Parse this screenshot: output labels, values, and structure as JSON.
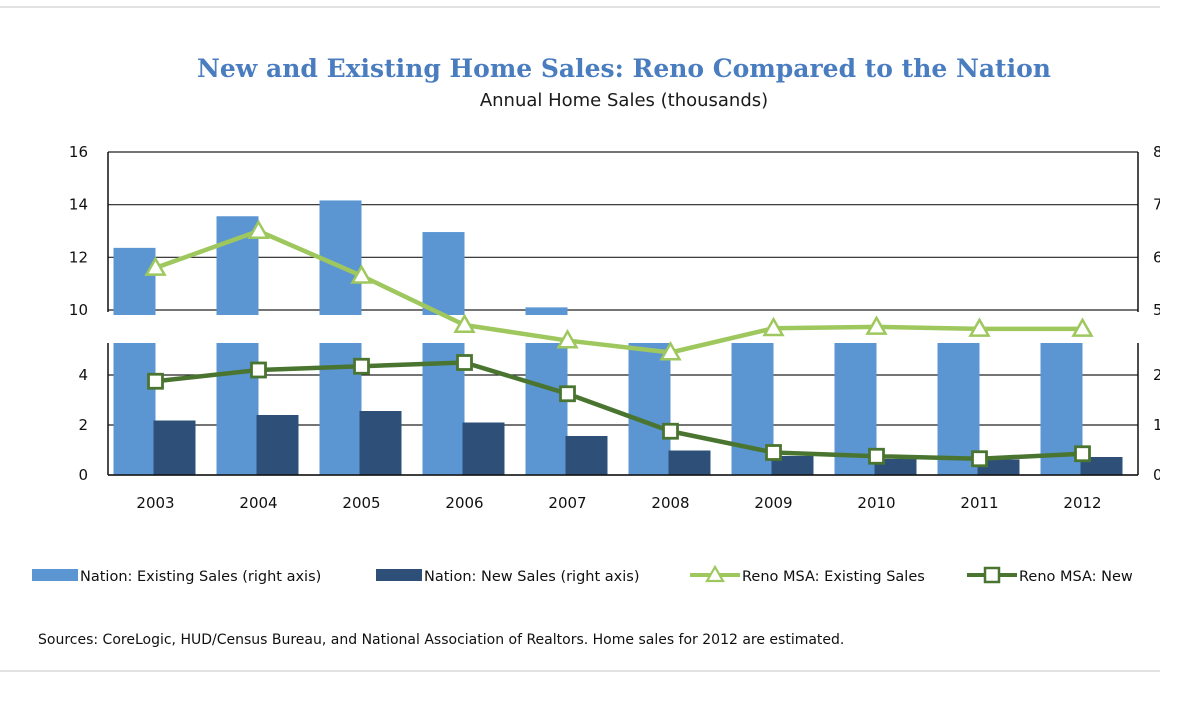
{
  "chart_data": {
    "type": "bar",
    "title": "New and Existing Home Sales: Reno Compared to the Nation",
    "subtitle": "Annual Home Sales (thousands)",
    "categories": [
      "2003",
      "2004",
      "2005",
      "2006",
      "2007",
      "2008",
      "2009",
      "2010",
      "2011",
      "2012"
    ],
    "left_axis_ticks": [
      "0",
      "2",
      "4",
      "10",
      "12",
      "14",
      "16"
    ],
    "right_axis_ticks": [
      "0",
      "1",
      "2",
      "5",
      "6",
      "7",
      "8"
    ],
    "series": [
      {
        "name": "Nation: Existing Sales (right axis)",
        "type": "bar",
        "axis": "right",
        "color": "#5b96d3",
        "values": [
          6.18,
          6.78,
          7.08,
          6.48,
          5.05,
          4.12,
          4.34,
          4.19,
          4.26,
          4.65
        ]
      },
      {
        "name": "Nation: New Sales (right axis)",
        "type": "bar",
        "axis": "right",
        "color": "#2e5078",
        "values": [
          1.09,
          1.2,
          1.28,
          1.05,
          0.78,
          0.49,
          0.38,
          0.32,
          0.31,
          0.36
        ]
      },
      {
        "name": "Reno MSA: Existing Sales",
        "type": "line",
        "axis": "left",
        "color": "#9ec85d",
        "marker": "triangle",
        "values": [
          11.6,
          13.0,
          11.3,
          8.0,
          5.6,
          4.9,
          7.5,
          7.7,
          7.4,
          7.4
        ]
      },
      {
        "name": "Reno MSA: New Sales",
        "type": "line",
        "axis": "left",
        "color": "#4a7530",
        "marker": "square",
        "values": [
          3.75,
          4.2,
          4.35,
          4.5,
          3.25,
          1.75,
          0.9,
          0.75,
          0.65,
          0.85
        ]
      }
    ],
    "grid": true,
    "legend_position": "bottom"
  },
  "legend": [
    "Nation: Existing Sales (right axis)",
    "Nation: New Sales (right axis)",
    "Reno MSA: Existing Sales",
    "Reno MSA: New"
  ],
  "source_note": "Sources: CoreLogic, HUD/Census  Bureau, and National Association of Realtors. Home sales for 2012 are estimated."
}
